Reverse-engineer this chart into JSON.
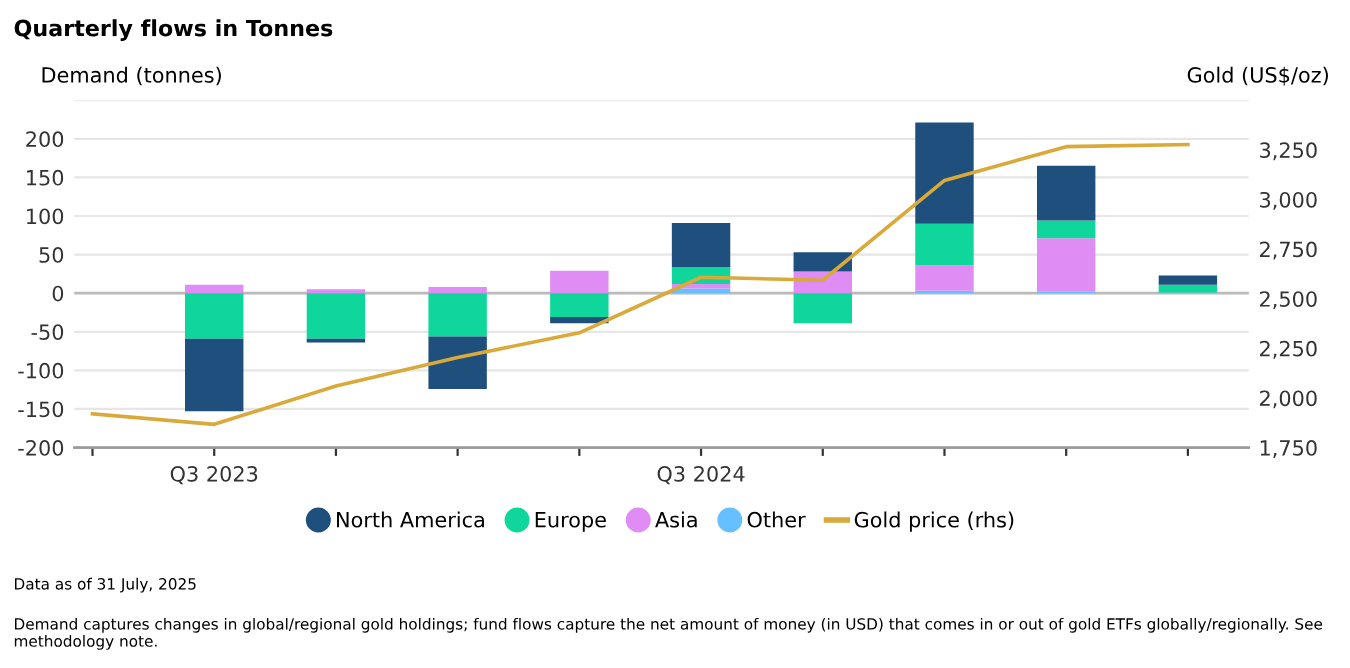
{
  "chart_data": {
    "type": "bar",
    "title": "Quarterly flows in Tonnes",
    "ylabel": "Demand (tonnes)",
    "y2label": "Gold (US$/oz)",
    "categories": [
      null,
      "Q3 2023",
      null,
      null,
      null,
      "Q3 2024",
      null,
      null,
      null,
      null
    ],
    "stacked": true,
    "series": [
      {
        "name": "Other",
        "color": "#66bfff",
        "values": [
          null,
          0,
          0,
          0,
          0,
          6,
          0,
          3,
          2,
          1
        ]
      },
      {
        "name": "Asia",
        "color": "#e08cf5",
        "values": [
          null,
          11,
          5,
          8,
          29,
          6,
          28,
          33,
          69,
          0
        ]
      },
      {
        "name": "Europe",
        "color": "#0fd69a",
        "values": [
          null,
          -59,
          -59,
          -56,
          -31,
          22,
          -39,
          54,
          23,
          10
        ]
      },
      {
        "name": "North America",
        "color": "#1e4f7d",
        "values": [
          null,
          -94,
          -5,
          -68,
          -8,
          57,
          25,
          131,
          71,
          12
        ]
      },
      {
        "name": "Gold price (rhs)",
        "type": "line",
        "axis": "y2",
        "color": "#d9a93a",
        "values": [
          1920,
          1867,
          2060,
          2204,
          2328,
          2608,
          2593,
          3096,
          3266,
          3277
        ]
      }
    ],
    "ylim": [
      -200,
      250
    ],
    "yticks": [
      -200,
      -150,
      -100,
      -50,
      0,
      50,
      100,
      150,
      200,
      {
        "value": 250,
        "label": null
      }
    ],
    "y2lim": [
      1750,
      3500
    ],
    "y2ticks": [
      {
        "value": 1750,
        "label": "1,750"
      },
      {
        "value": 2000,
        "label": "2,000"
      },
      {
        "value": 2250,
        "label": "2,250"
      },
      {
        "value": 2500,
        "label": "2,500"
      },
      {
        "value": 2750,
        "label": "2,750"
      },
      {
        "value": 3000,
        "label": "3,000"
      },
      {
        "value": 3250,
        "label": "3,250"
      }
    ],
    "grid": "y",
    "legend": "bottom",
    "annotations": [
      "Data as of 31 July, 2025",
      "Demand captures changes in global/regional gold holdings; fund flows capture the net amount of money (in USD) that comes in or out of gold ETFs globally/regionally. See methodology note."
    ]
  }
}
